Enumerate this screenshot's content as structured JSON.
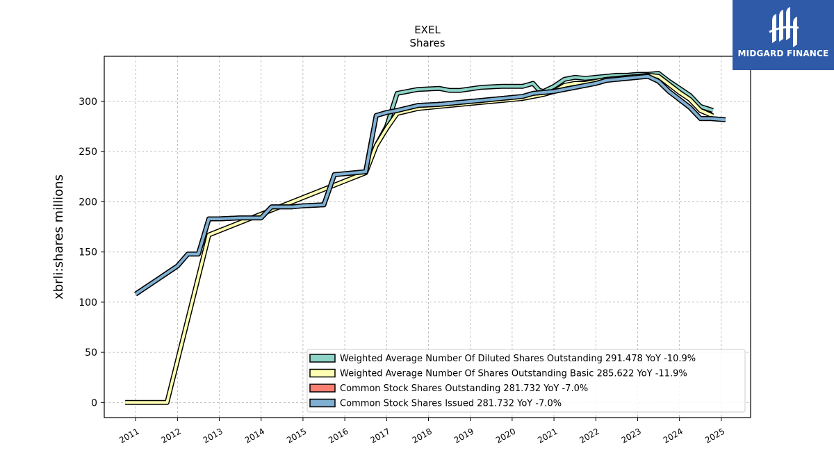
{
  "chart_data": {
    "type": "line",
    "title": "EXEL",
    "subtitle": "Shares",
    "ylabel": "xbrli:shares millions",
    "xlabel": "",
    "ylim": [
      -15,
      345
    ],
    "xlim": [
      2010.25,
      2025.7
    ],
    "yticks": [
      0,
      50,
      100,
      150,
      200,
      250,
      300
    ],
    "xticks": [
      "2011",
      "2012",
      "2013",
      "2014",
      "2015",
      "2016",
      "2017",
      "2018",
      "2019",
      "2020",
      "2021",
      "2022",
      "2023",
      "2024",
      "2025"
    ],
    "grid": true,
    "legend_position": "lower-right",
    "series": [
      {
        "name": "Weighted Average Number Of Diluted Shares Outstanding",
        "legend": "Weighted Average Number Of Diluted Shares Outstanding  291.478 YoY -10.9%",
        "color": "#8dd3c7",
        "points": [
          [
            2016.75,
            256
          ],
          [
            2017.0,
            275
          ],
          [
            2017.25,
            308
          ],
          [
            2017.75,
            312
          ],
          [
            2018.25,
            313
          ],
          [
            2018.5,
            311
          ],
          [
            2018.75,
            311
          ],
          [
            2019.25,
            314
          ],
          [
            2019.75,
            315
          ],
          [
            2020.25,
            315
          ],
          [
            2020.5,
            318
          ],
          [
            2020.65,
            311
          ],
          [
            2020.75,
            310
          ],
          [
            2021.0,
            315
          ],
          [
            2021.25,
            322
          ],
          [
            2021.5,
            324
          ],
          [
            2021.75,
            323
          ],
          [
            2022.0,
            324
          ],
          [
            2022.25,
            325
          ],
          [
            2022.5,
            326
          ],
          [
            2022.75,
            326
          ],
          [
            2023.0,
            327
          ],
          [
            2023.25,
            327
          ],
          [
            2023.5,
            328
          ],
          [
            2023.75,
            320
          ],
          [
            2024.0,
            313
          ],
          [
            2024.25,
            306
          ],
          [
            2024.5,
            295
          ],
          [
            2024.8,
            291
          ]
        ]
      },
      {
        "name": "Weighted Average Number Of Shares Outstanding Basic",
        "legend": "Weighted Average Number Of Shares Outstanding Basic  285.622 YoY -11.9%",
        "color": "#ffffb3",
        "points": [
          [
            2010.75,
            0
          ],
          [
            2011.75,
            0
          ],
          [
            2012.75,
            167
          ],
          [
            2016.5,
            229
          ],
          [
            2016.75,
            256
          ],
          [
            2017.0,
            273
          ],
          [
            2017.25,
            288
          ],
          [
            2017.75,
            293
          ],
          [
            2018.25,
            295
          ],
          [
            2018.75,
            297
          ],
          [
            2019.25,
            299
          ],
          [
            2019.75,
            301
          ],
          [
            2020.25,
            303
          ],
          [
            2020.5,
            305
          ],
          [
            2020.75,
            307
          ],
          [
            2021.0,
            310
          ],
          [
            2021.25,
            316
          ],
          [
            2021.5,
            318
          ],
          [
            2021.75,
            318
          ],
          [
            2022.0,
            320
          ],
          [
            2022.25,
            322
          ],
          [
            2022.5,
            323
          ],
          [
            2022.75,
            324
          ],
          [
            2023.0,
            325
          ],
          [
            2023.25,
            326
          ],
          [
            2023.5,
            325
          ],
          [
            2023.75,
            317
          ],
          [
            2024.0,
            309
          ],
          [
            2024.25,
            302
          ],
          [
            2024.5,
            291
          ],
          [
            2024.8,
            285.6
          ]
        ]
      },
      {
        "name": "Common Stock Shares Outstanding",
        "legend": "Common Stock Shares Outstanding  281.732 YoY -7.0%",
        "color": "#fb8072",
        "points": [
          [
            2011.0,
            108
          ],
          [
            2011.5,
            122
          ],
          [
            2012.0,
            136
          ],
          [
            2012.25,
            148
          ],
          [
            2012.5,
            148
          ],
          [
            2012.75,
            183
          ],
          [
            2013.0,
            183
          ],
          [
            2013.5,
            184
          ],
          [
            2014.0,
            184
          ],
          [
            2014.25,
            195
          ],
          [
            2014.5,
            195
          ],
          [
            2014.75,
            195
          ],
          [
            2015.0,
            196
          ],
          [
            2015.5,
            197
          ],
          [
            2015.75,
            227
          ],
          [
            2016.0,
            228
          ],
          [
            2016.25,
            229
          ],
          [
            2016.5,
            230
          ],
          [
            2016.75,
            286
          ],
          [
            2017.0,
            289
          ],
          [
            2017.25,
            291
          ],
          [
            2017.75,
            296
          ],
          [
            2018.25,
            297
          ],
          [
            2018.75,
            299
          ],
          [
            2019.25,
            301
          ],
          [
            2019.75,
            303
          ],
          [
            2020.25,
            305
          ],
          [
            2020.5,
            308
          ],
          [
            2020.75,
            309
          ],
          [
            2021.0,
            310
          ],
          [
            2021.25,
            312
          ],
          [
            2021.5,
            314
          ],
          [
            2021.75,
            316
          ],
          [
            2022.0,
            318
          ],
          [
            2022.25,
            321
          ],
          [
            2022.5,
            322
          ],
          [
            2022.75,
            323
          ],
          [
            2023.0,
            324
          ],
          [
            2023.25,
            325
          ],
          [
            2023.5,
            320
          ],
          [
            2023.75,
            310
          ],
          [
            2024.0,
            302
          ],
          [
            2024.25,
            294
          ],
          [
            2024.5,
            283
          ],
          [
            2024.75,
            283
          ],
          [
            2025.1,
            281.7
          ]
        ]
      },
      {
        "name": "Common Stock Shares Issued",
        "legend": "Common Stock Shares Issued  281.732 YoY -7.0%",
        "color": "#80b1d3",
        "points": [
          [
            2011.0,
            108
          ],
          [
            2011.5,
            122
          ],
          [
            2012.0,
            136
          ],
          [
            2012.25,
            148
          ],
          [
            2012.5,
            148
          ],
          [
            2012.75,
            183
          ],
          [
            2013.0,
            183
          ],
          [
            2013.5,
            184
          ],
          [
            2014.0,
            184
          ],
          [
            2014.25,
            195
          ],
          [
            2014.5,
            195
          ],
          [
            2014.75,
            195
          ],
          [
            2015.0,
            196
          ],
          [
            2015.5,
            197
          ],
          [
            2015.75,
            227
          ],
          [
            2016.0,
            228
          ],
          [
            2016.25,
            229
          ],
          [
            2016.5,
            230
          ],
          [
            2016.75,
            286
          ],
          [
            2017.0,
            289
          ],
          [
            2017.25,
            291
          ],
          [
            2017.75,
            296
          ],
          [
            2018.25,
            297
          ],
          [
            2018.75,
            299
          ],
          [
            2019.25,
            301
          ],
          [
            2019.75,
            303
          ],
          [
            2020.25,
            305
          ],
          [
            2020.5,
            308
          ],
          [
            2020.75,
            309
          ],
          [
            2021.0,
            310
          ],
          [
            2021.25,
            312
          ],
          [
            2021.5,
            314
          ],
          [
            2021.75,
            316
          ],
          [
            2022.0,
            318
          ],
          [
            2022.25,
            321
          ],
          [
            2022.5,
            322
          ],
          [
            2022.75,
            323
          ],
          [
            2023.0,
            324
          ],
          [
            2023.25,
            325
          ],
          [
            2023.5,
            320
          ],
          [
            2023.75,
            310
          ],
          [
            2024.0,
            302
          ],
          [
            2024.25,
            294
          ],
          [
            2024.5,
            283
          ],
          [
            2024.75,
            283
          ],
          [
            2025.1,
            281.7
          ]
        ]
      }
    ]
  },
  "logo": {
    "text": "MIDGARD FINANCE",
    "background": "#2e5aa8"
  }
}
